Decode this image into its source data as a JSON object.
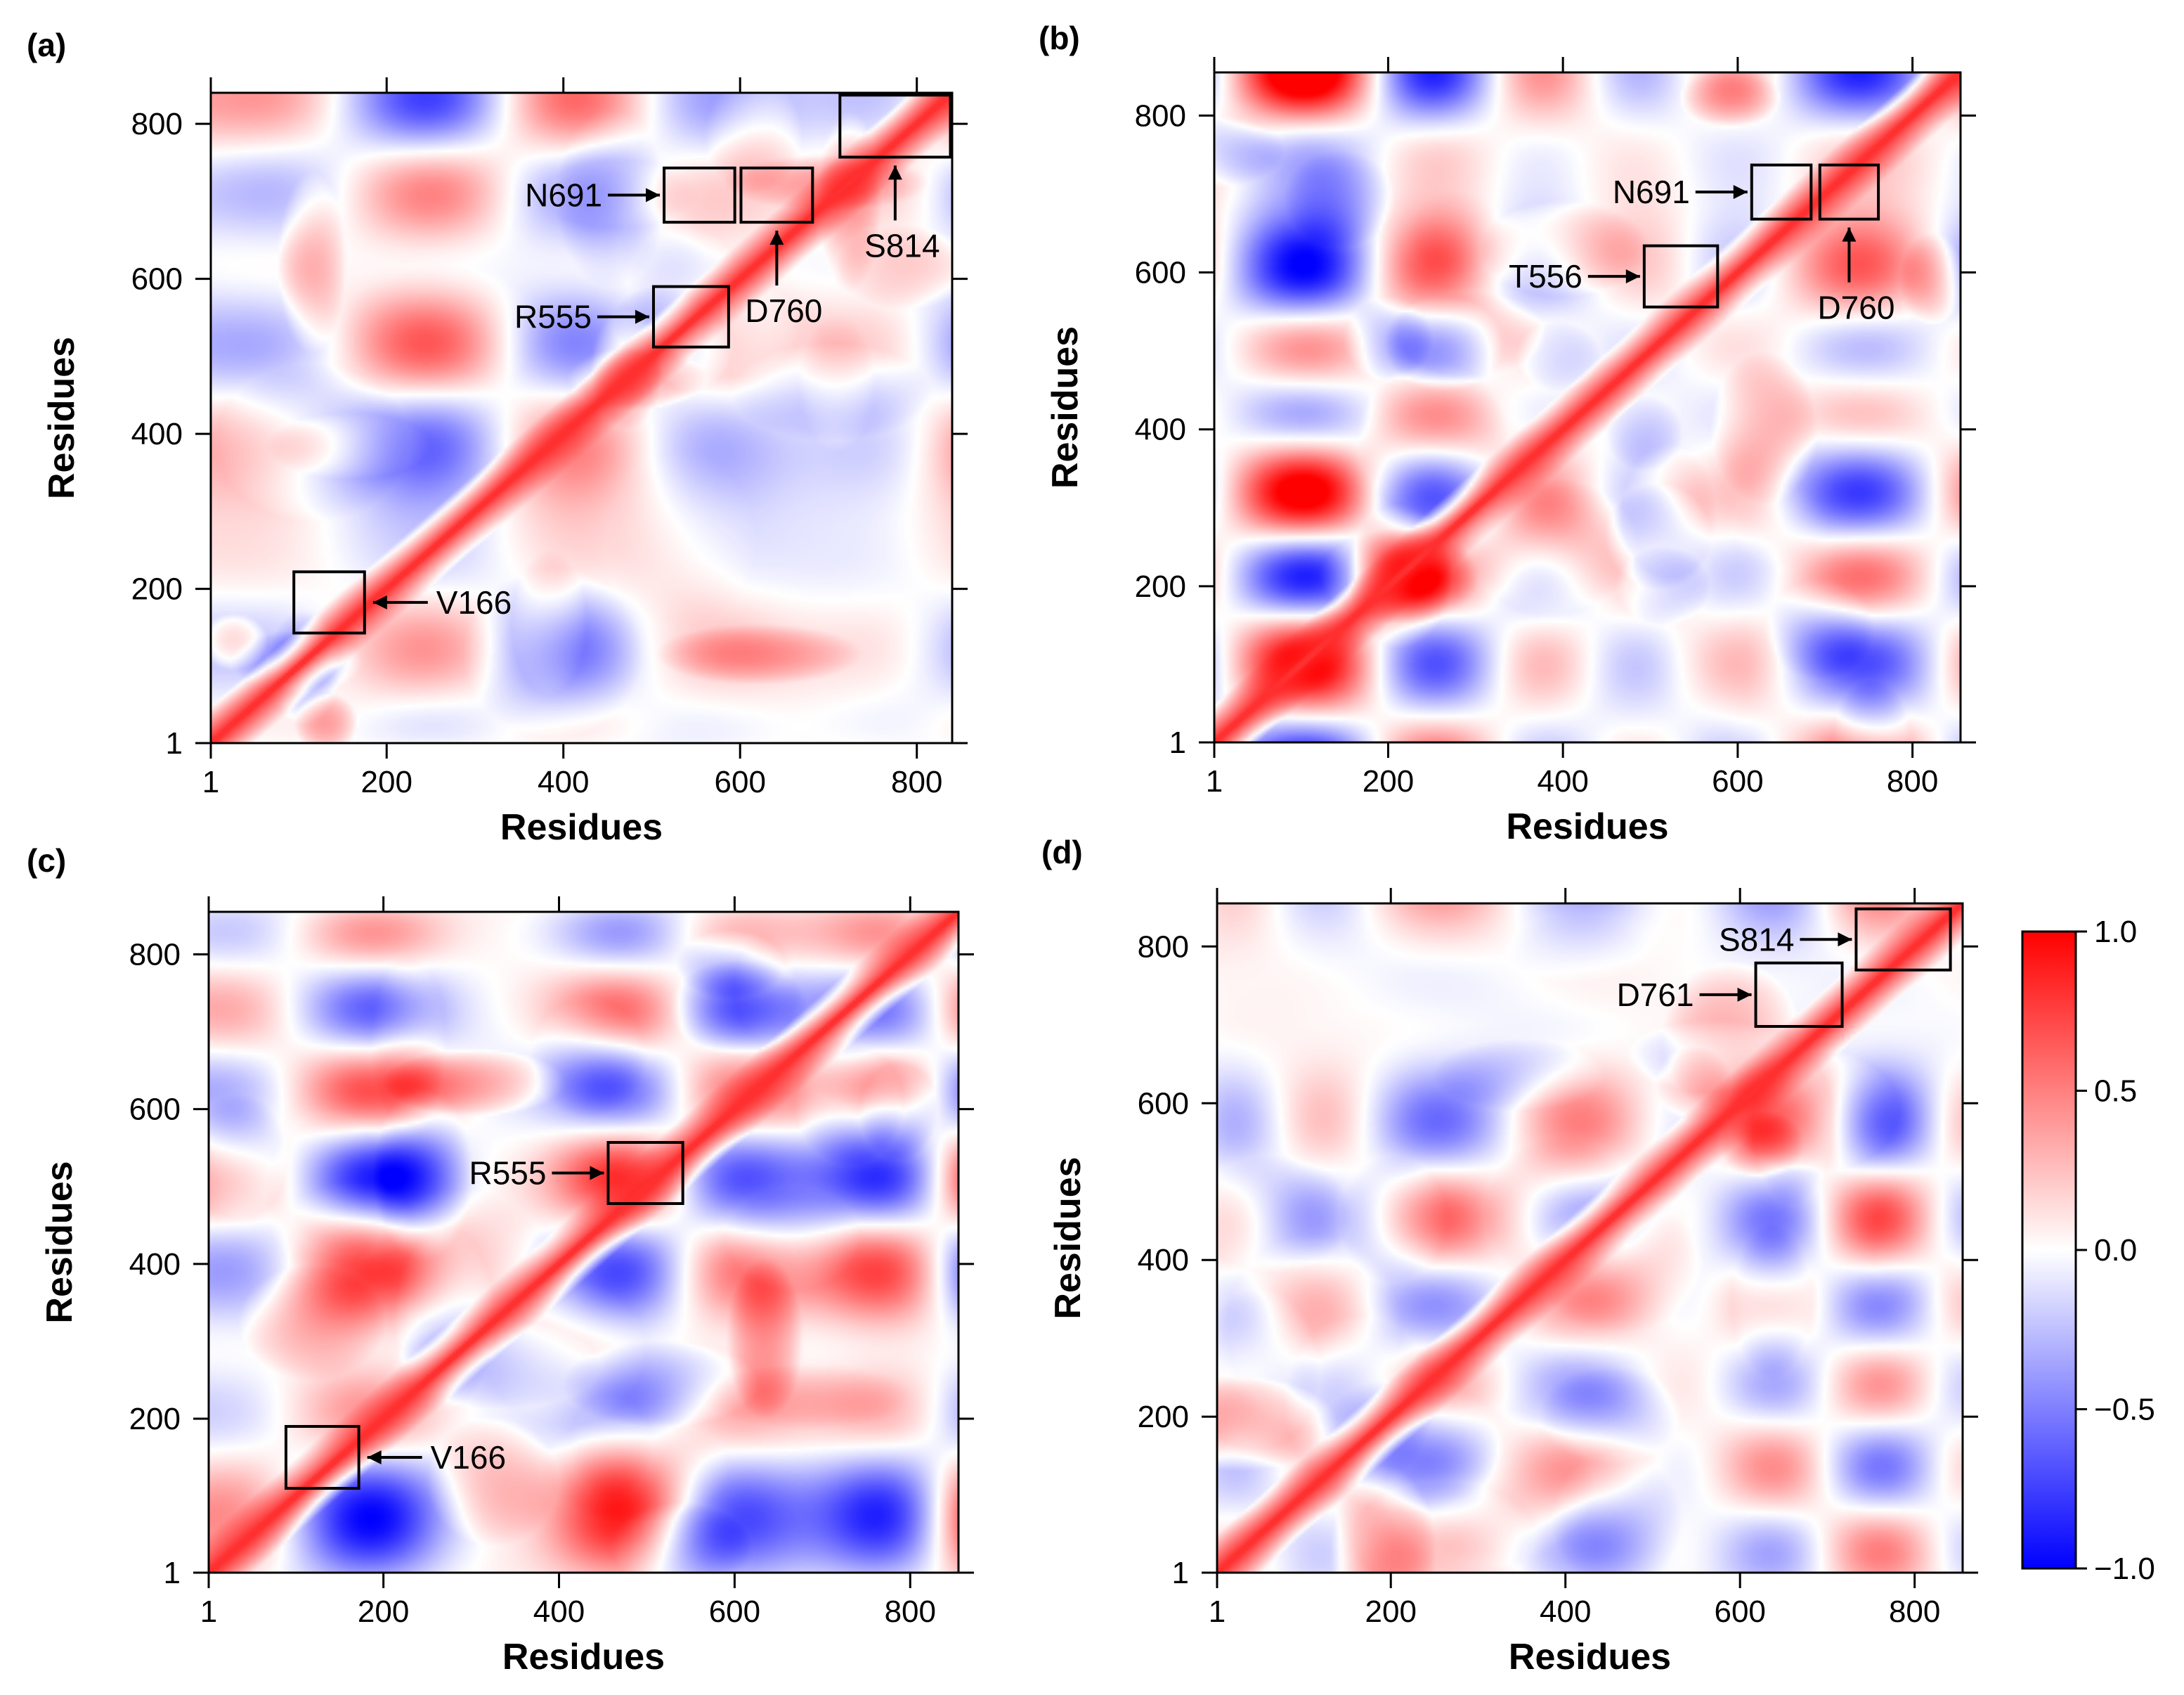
{
  "figure": {
    "colormap": [
      "#0000ff",
      "#ffffff",
      "#ff0000"
    ]
  },
  "chart_data": [
    {
      "type": "heatmap",
      "panel": "(a)",
      "xlabel": "Residues",
      "ylabel": "Residues",
      "xlim": [
        1,
        840
      ],
      "ylim": [
        1,
        840
      ],
      "xticks": [
        1,
        200,
        400,
        600,
        800
      ],
      "yticks": [
        1,
        200,
        400,
        600,
        800
      ],
      "value_range": [
        -1.0,
        1.0
      ],
      "diagonal_value": 1.0,
      "annotations": [
        {
          "label": "V166",
          "box_x": [
            95,
            175
          ],
          "box_y": [
            143,
            222
          ],
          "arrow": "left"
        },
        {
          "label": "R555",
          "box_x": [
            502,
            587
          ],
          "box_y": [
            512,
            590
          ],
          "arrow": "right"
        },
        {
          "label": "N691",
          "box_x": [
            514,
            594
          ],
          "box_y": [
            673,
            743
          ],
          "arrow": "right"
        },
        {
          "label": "D760",
          "box_x": [
            601,
            682
          ],
          "box_y": [
            673,
            743
          ],
          "arrow": "up"
        },
        {
          "label": "S814",
          "box_x": [
            713,
            838
          ],
          "box_y": [
            757,
            837
          ],
          "arrow": "up"
        }
      ]
    },
    {
      "type": "heatmap",
      "panel": "(b)",
      "xlabel": "Residues",
      "ylabel": "Residues",
      "xlim": [
        1,
        855
      ],
      "ylim": [
        1,
        855
      ],
      "xticks": [
        1,
        200,
        400,
        600,
        800
      ],
      "yticks": [
        1,
        200,
        400,
        600,
        800
      ],
      "value_range": [
        -1.0,
        1.0
      ],
      "diagonal_value": 1.0,
      "annotations": [
        {
          "label": "T556",
          "box_x": [
            493,
            577
          ],
          "box_y": [
            556,
            634
          ],
          "arrow": "right"
        },
        {
          "label": "N691",
          "box_x": [
            616,
            684
          ],
          "box_y": [
            668,
            737
          ],
          "arrow": "right"
        },
        {
          "label": "D760",
          "box_x": [
            694,
            761
          ],
          "box_y": [
            668,
            737
          ],
          "arrow": "up"
        }
      ]
    },
    {
      "type": "heatmap",
      "panel": "(c)",
      "xlabel": "Residues",
      "ylabel": "Residues",
      "xlim": [
        1,
        855
      ],
      "ylim": [
        1,
        855
      ],
      "xticks": [
        1,
        200,
        400,
        600,
        800
      ],
      "yticks": [
        1,
        200,
        400,
        600,
        800
      ],
      "value_range": [
        -1.0,
        1.0
      ],
      "diagonal_value": 1.0,
      "annotations": [
        {
          "label": "V166",
          "box_x": [
            89,
            172
          ],
          "box_y": [
            110,
            190
          ],
          "arrow": "left"
        },
        {
          "label": "R555",
          "box_x": [
            456,
            541
          ],
          "box_y": [
            478,
            557
          ],
          "arrow": "right"
        }
      ]
    },
    {
      "type": "heatmap",
      "panel": "(d)",
      "xlabel": "Residues",
      "ylabel": "Residues",
      "xlim": [
        1,
        855
      ],
      "ylim": [
        1,
        855
      ],
      "xticks": [
        1,
        200,
        400,
        600,
        800
      ],
      "yticks": [
        1,
        200,
        400,
        600,
        800
      ],
      "value_range": [
        -1.0,
        1.0
      ],
      "diagonal_value": 1.0,
      "annotations": [
        {
          "label": "S814",
          "box_x": [
            733,
            841
          ],
          "box_y": [
            770,
            848
          ],
          "arrow": "right"
        },
        {
          "label": "D761",
          "box_x": [
            618,
            717
          ],
          "box_y": [
            698,
            779
          ],
          "arrow": "right"
        }
      ]
    }
  ],
  "colorbar": {
    "range": [
      -1.0,
      1.0
    ],
    "tick_values": [
      1.0,
      0.5,
      0.0,
      -0.5,
      -1.0
    ],
    "tick_labels": [
      "1.0",
      "0.5",
      "0.0",
      "−0.5",
      "−1.0"
    ]
  }
}
